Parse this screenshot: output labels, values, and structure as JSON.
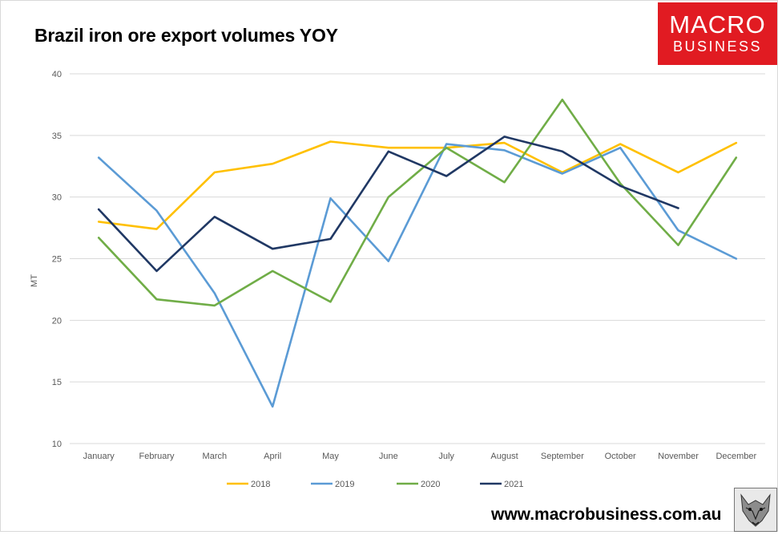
{
  "title": "Brazil iron ore export volumes YOY",
  "logo": {
    "line1": "MACRO",
    "line2": "BUSINESS"
  },
  "website": "www.macrobusiness.com.au",
  "chart_data": {
    "type": "line",
    "title": "Brazil iron ore export volumes YOY",
    "xlabel": "",
    "ylabel": "MT",
    "ylim": [
      10,
      40
    ],
    "yticks": [
      10,
      15,
      20,
      25,
      30,
      35,
      40
    ],
    "grid": true,
    "legend_position": "bottom",
    "categories": [
      "January",
      "February",
      "March",
      "April",
      "May",
      "June",
      "July",
      "August",
      "September",
      "October",
      "November",
      "December"
    ],
    "series": [
      {
        "name": "2018",
        "color": "#ffc000",
        "values": [
          28.0,
          27.4,
          32.0,
          32.7,
          34.5,
          34.0,
          34.0,
          34.4,
          32.0,
          34.3,
          32.0,
          34.4
        ]
      },
      {
        "name": "2019",
        "color": "#5b9bd5",
        "values": [
          33.2,
          28.9,
          22.2,
          13.0,
          29.9,
          24.8,
          34.3,
          33.8,
          31.9,
          34.0,
          27.3,
          25.0
        ]
      },
      {
        "name": "2020",
        "color": "#70ad47",
        "values": [
          26.7,
          21.7,
          21.2,
          24.0,
          21.5,
          30.0,
          34.0,
          31.2,
          37.9,
          31.1,
          26.1,
          33.2
        ]
      },
      {
        "name": "2021",
        "color": "#203864",
        "values": [
          29.0,
          24.0,
          28.4,
          25.8,
          26.6,
          33.7,
          31.7,
          34.9,
          33.7,
          30.9,
          29.1,
          null
        ]
      }
    ]
  }
}
